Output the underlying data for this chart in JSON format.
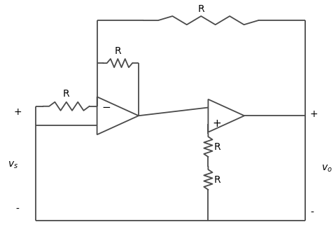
{
  "bg_color": "#ffffff",
  "line_color": "#4a4a4a",
  "text_color": "#000000",
  "font_size": 10,
  "fig_width": 4.81,
  "fig_height": 3.37,
  "dpi": 100,
  "resistor_label": "R",
  "vs_label": "v_s",
  "vo_label": "v_o"
}
